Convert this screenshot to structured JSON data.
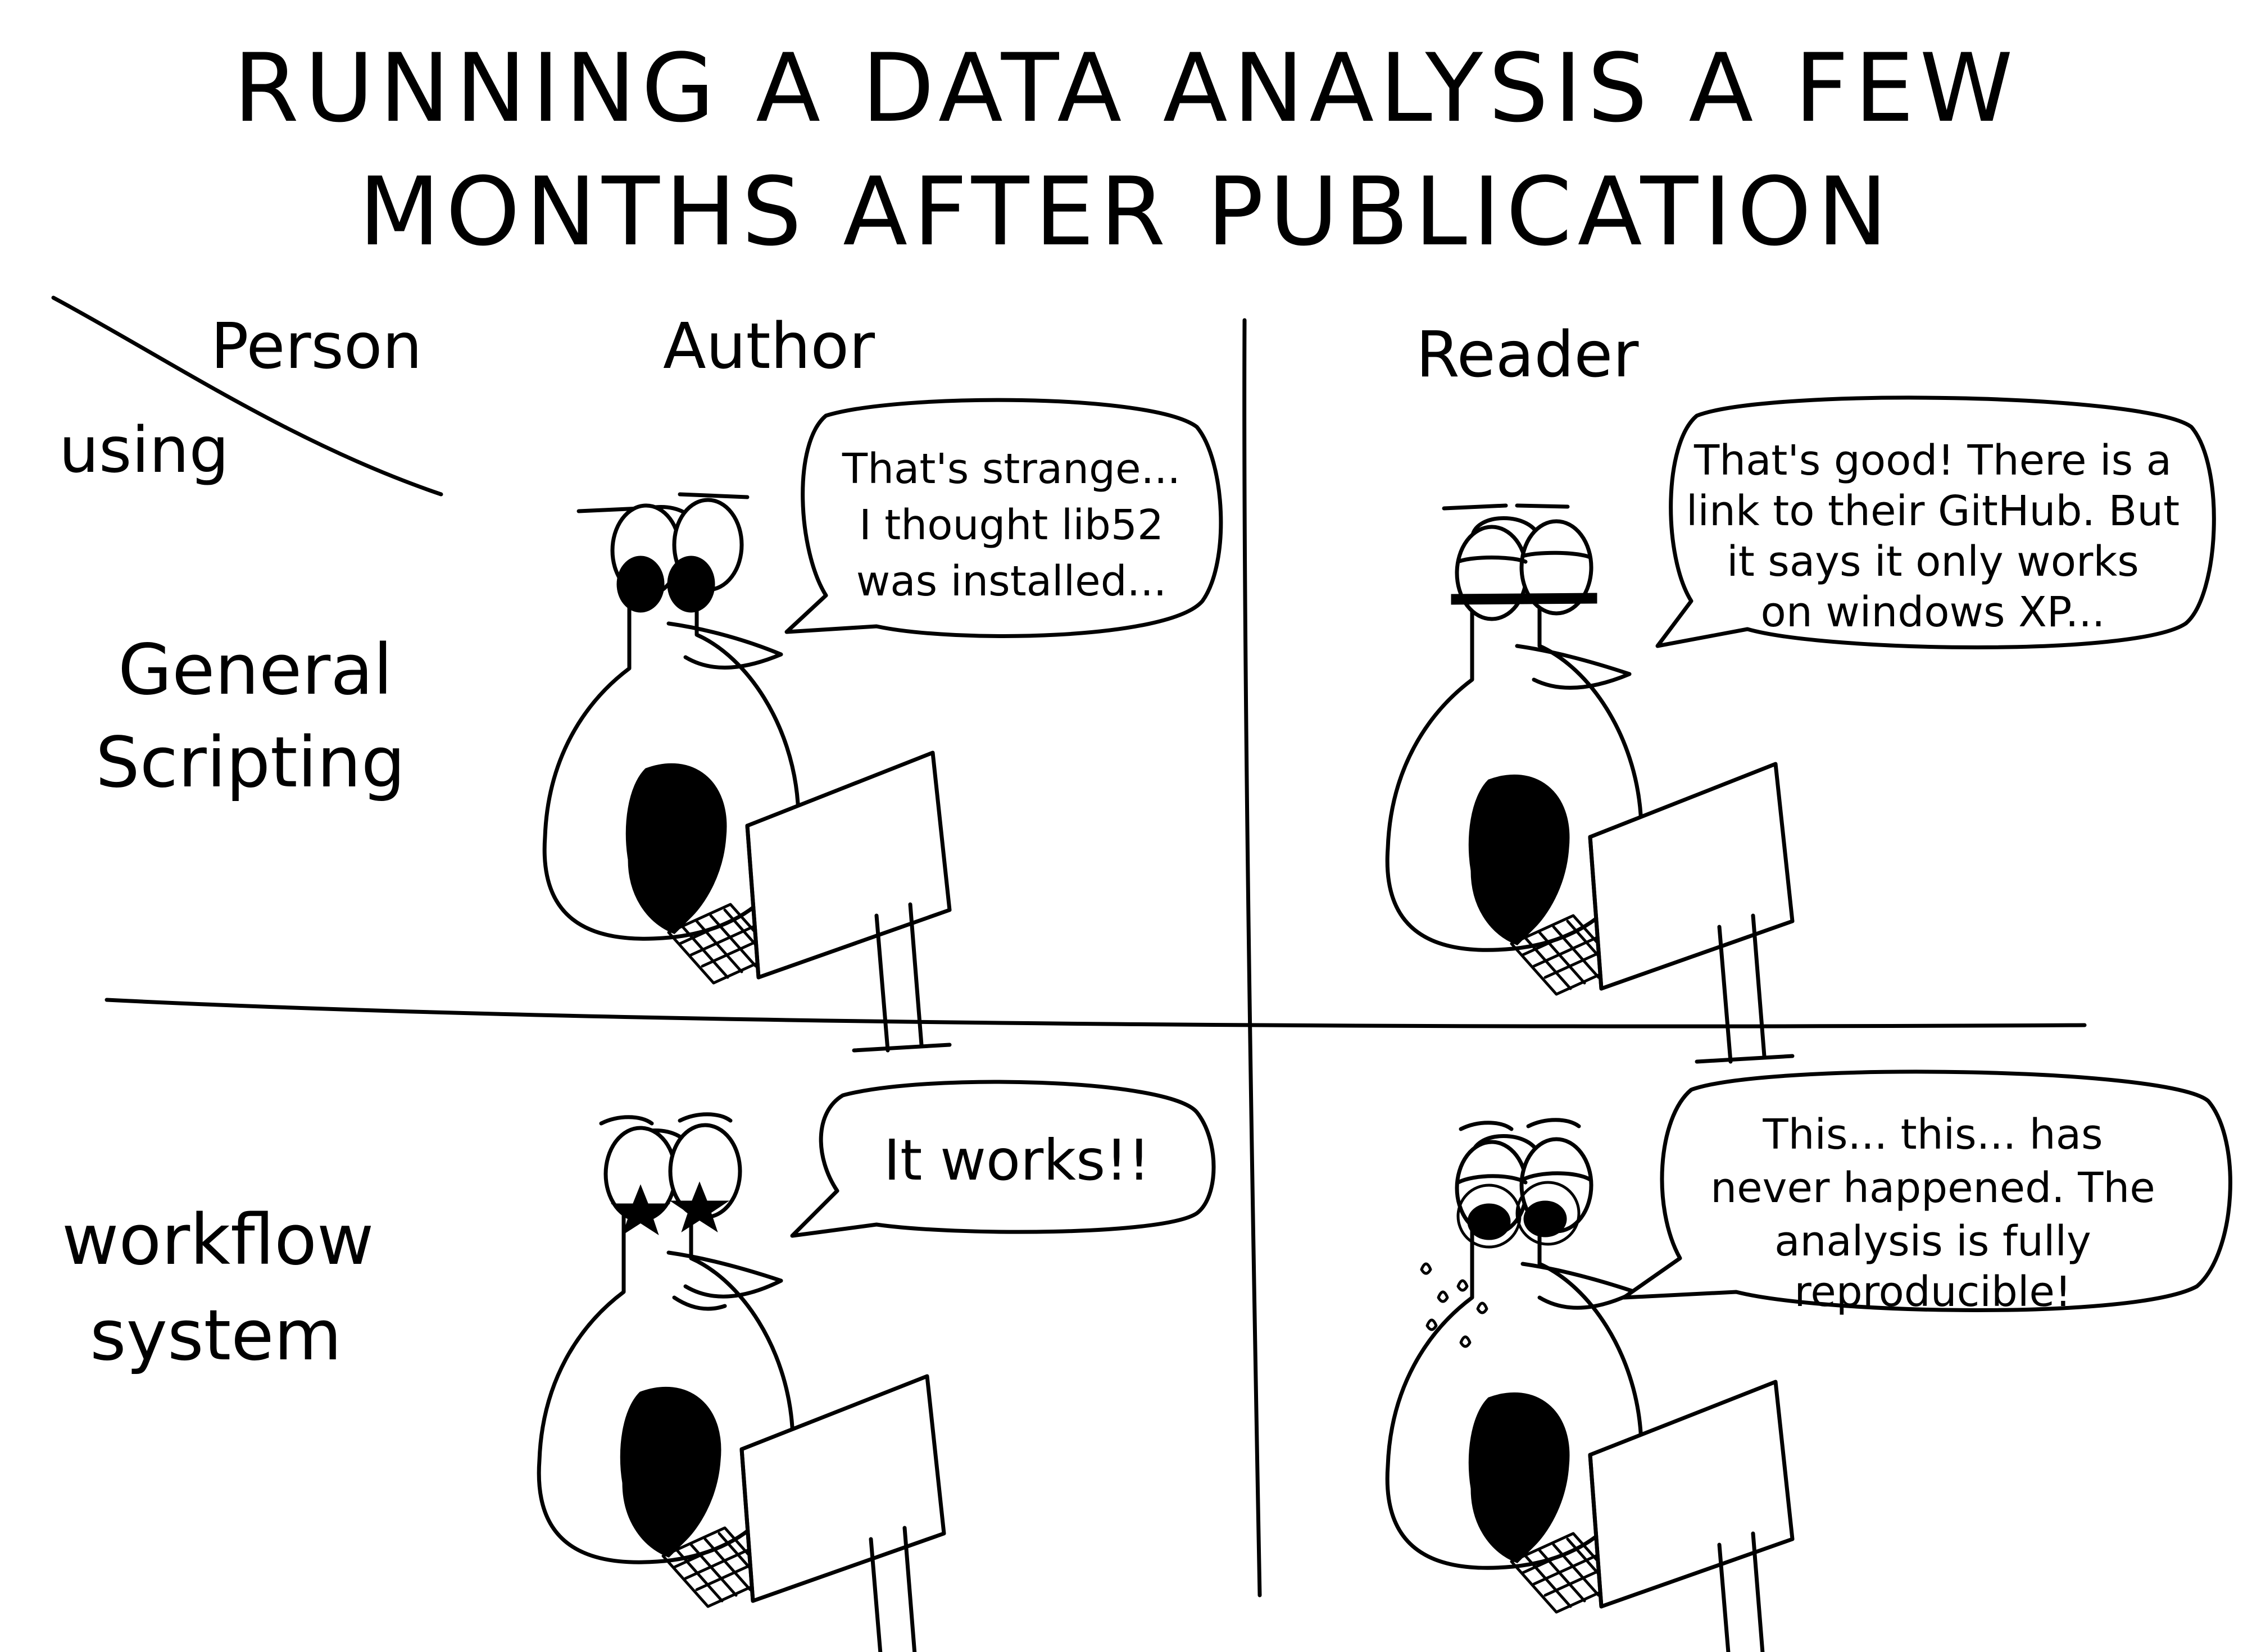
{
  "title": {
    "line1": "RUNNING A DATA ANALYSIS A FEW",
    "line2": "MONTHS AFTER PUBLICATION"
  },
  "headers": {
    "corner_person": "Person",
    "corner_using": "using",
    "author": "Author",
    "reader": "Reader"
  },
  "rows": {
    "general_scripting": [
      "General",
      "Scripting"
    ],
    "workflow_system": [
      "workflow",
      "system"
    ]
  },
  "bubbles": {
    "author_scripting": [
      "That's strange...",
      "I thought lib52",
      "was installed..."
    ],
    "reader_scripting": [
      "That's good! There is a",
      "link to their GitHub. But",
      "it says it only works",
      "on windows XP..."
    ],
    "author_workflow": [
      "It works!!"
    ],
    "reader_workflow": [
      "This... this... has",
      "never happened. The",
      "analysis is fully",
      "reproducible!"
    ]
  }
}
